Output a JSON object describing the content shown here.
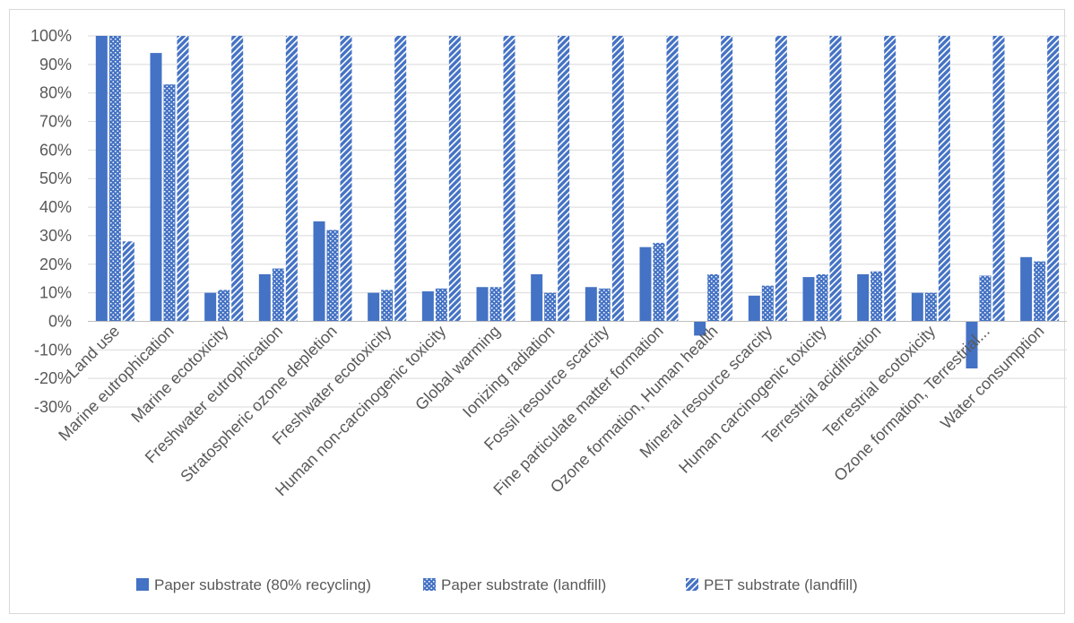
{
  "chart_data": {
    "type": "bar",
    "categories": [
      "Land use",
      "Marine eutrophication",
      "Marine ecotoxicity",
      "Freshwater eutrophication",
      "Stratospheric ozone depletion",
      "Freshwater ecotoxicity",
      "Human non-carcinogenic toxicity",
      "Global warming",
      "Ionizing radiation",
      "Fossil resource scarcity",
      "Fine particulate matter formation",
      "Ozone formation, Human health",
      "Mineral resource scarcity",
      "Human carcinogenic toxicity",
      "Terrestrial acidification",
      "Terrestrial ecotoxicity",
      "Ozone formation, Terrestrial...",
      "Water consumption"
    ],
    "series": [
      {
        "name": "Paper substrate (80% recycling)",
        "values": [
          100,
          94,
          10,
          16.5,
          35,
          10,
          10.5,
          12,
          16.5,
          12,
          26,
          -5,
          9,
          15.5,
          16.5,
          10,
          -16.5,
          22.5
        ],
        "color": "#4472c4",
        "pattern": "solid"
      },
      {
        "name": "Paper substrate (landfill)",
        "values": [
          100,
          83,
          11,
          18.5,
          32,
          11,
          11.5,
          12,
          10,
          11.5,
          27.5,
          16.5,
          12.5,
          16.5,
          17.5,
          10,
          16,
          21
        ],
        "color": "#4472c4",
        "pattern": "dots"
      },
      {
        "name": "PET substrate (landfill)",
        "values": [
          28,
          100,
          100,
          100,
          100,
          100,
          100,
          100,
          100,
          100,
          100,
          100,
          100,
          100,
          100,
          100,
          100,
          100
        ],
        "color": "#4472c4",
        "pattern": "diagonal"
      }
    ],
    "yticks": [
      "100%",
      "90%",
      "80%",
      "70%",
      "60%",
      "50%",
      "40%",
      "30%",
      "20%",
      "10%",
      "0%",
      "-10%",
      "-20%",
      "-30%"
    ],
    "ylim": [
      -30,
      100
    ],
    "grid": true,
    "legend_position": "bottom"
  }
}
